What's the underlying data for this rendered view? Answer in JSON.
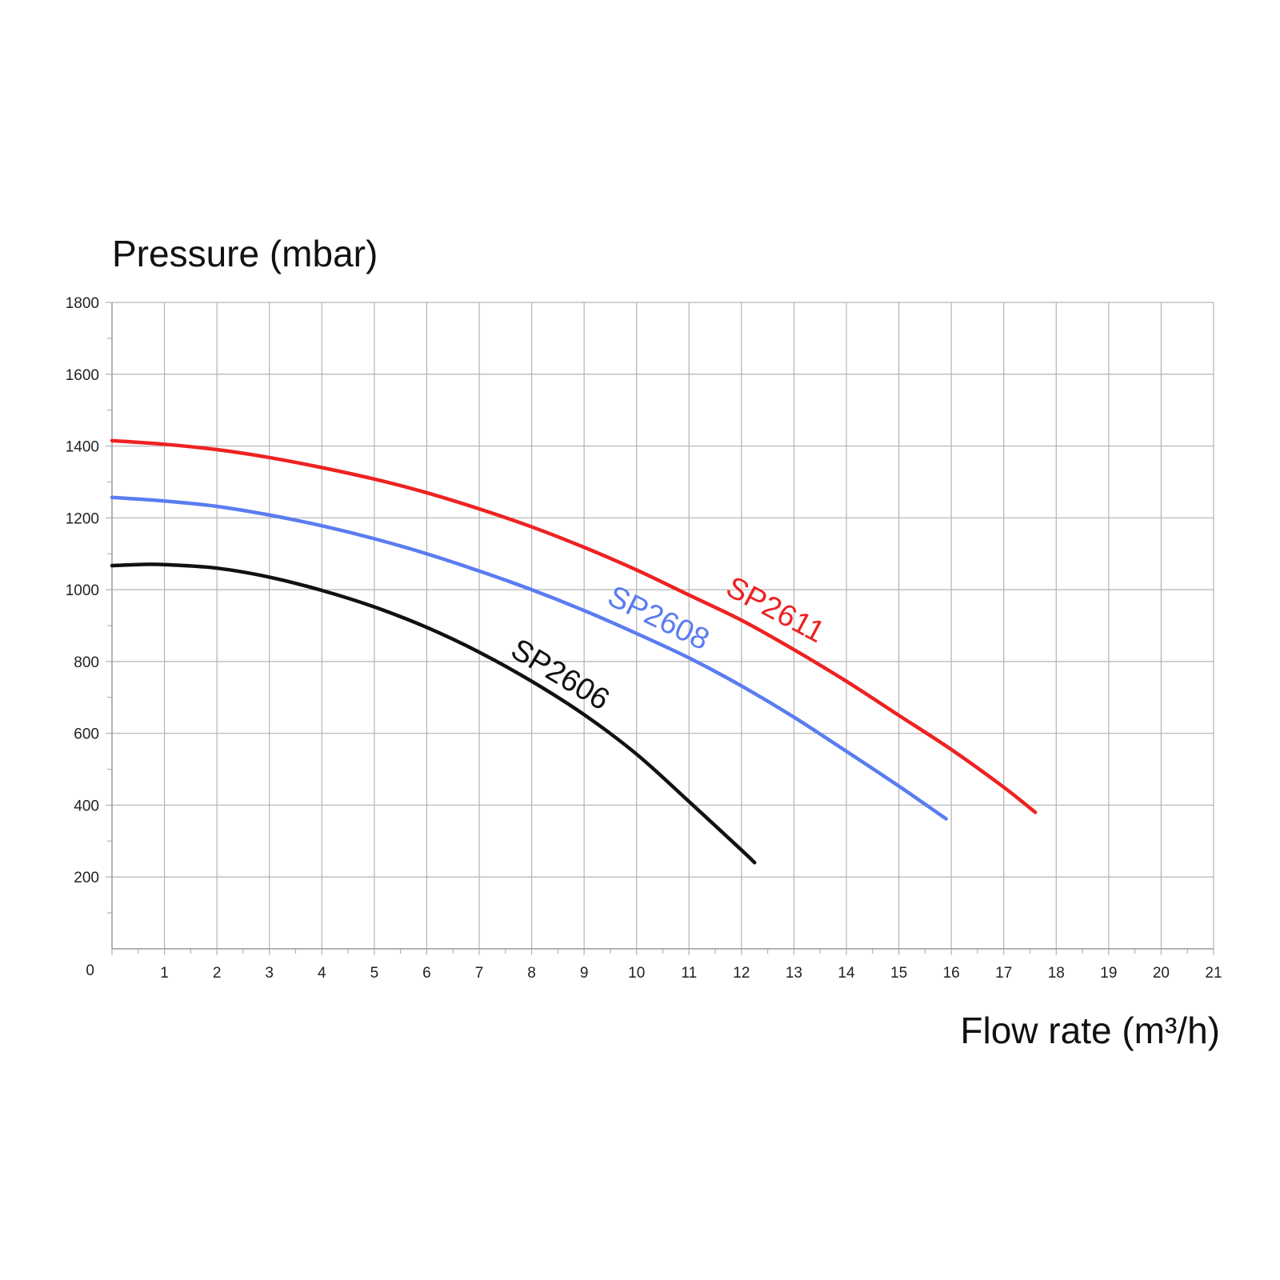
{
  "chart_data": {
    "type": "line",
    "title": "",
    "ylabel": "Pressure (mbar)",
    "xlabel": "Flow rate (m³/h)",
    "xlim": [
      0,
      21
    ],
    "ylim": [
      0,
      1800
    ],
    "x_ticks": [
      "0",
      "1",
      "2",
      "3",
      "4",
      "5",
      "6",
      "7",
      "8",
      "9",
      "10",
      "11",
      "12",
      "13",
      "14",
      "15",
      "16",
      "17",
      "18",
      "19",
      "20",
      "21"
    ],
    "y_ticks": [
      "200",
      "400",
      "600",
      "800",
      "1000",
      "1200",
      "1400",
      "1600",
      "1800"
    ],
    "grid": true,
    "legend": "inline labels on curves",
    "series": [
      {
        "name": "SP2611",
        "color": "#ee2222",
        "x": [
          0,
          1,
          2,
          3,
          4,
          5,
          6,
          7,
          8,
          9,
          10,
          11,
          12,
          13,
          14,
          15,
          16,
          17,
          17.6
        ],
        "y": [
          1415,
          1405,
          1390,
          1368,
          1340,
          1308,
          1270,
          1225,
          1175,
          1118,
          1055,
          985,
          915,
          833,
          745,
          650,
          555,
          450,
          380
        ]
      },
      {
        "name": "SP2608",
        "color": "#5b7cf0",
        "x": [
          0,
          1,
          2,
          3,
          4,
          5,
          6,
          7,
          8,
          9,
          10,
          11,
          12,
          13,
          14,
          15,
          15.9
        ],
        "y": [
          1257,
          1247,
          1232,
          1208,
          1178,
          1142,
          1100,
          1052,
          1000,
          942,
          878,
          810,
          732,
          645,
          550,
          453,
          362
        ]
      },
      {
        "name": "SP2606",
        "color": "#111111",
        "x": [
          0,
          0.5,
          1,
          2,
          3,
          4,
          5,
          6,
          7,
          8,
          9,
          10,
          11,
          12,
          12.25
        ],
        "y": [
          1067,
          1070,
          1070,
          1060,
          1035,
          998,
          952,
          895,
          826,
          745,
          652,
          542,
          410,
          275,
          240
        ]
      }
    ]
  }
}
